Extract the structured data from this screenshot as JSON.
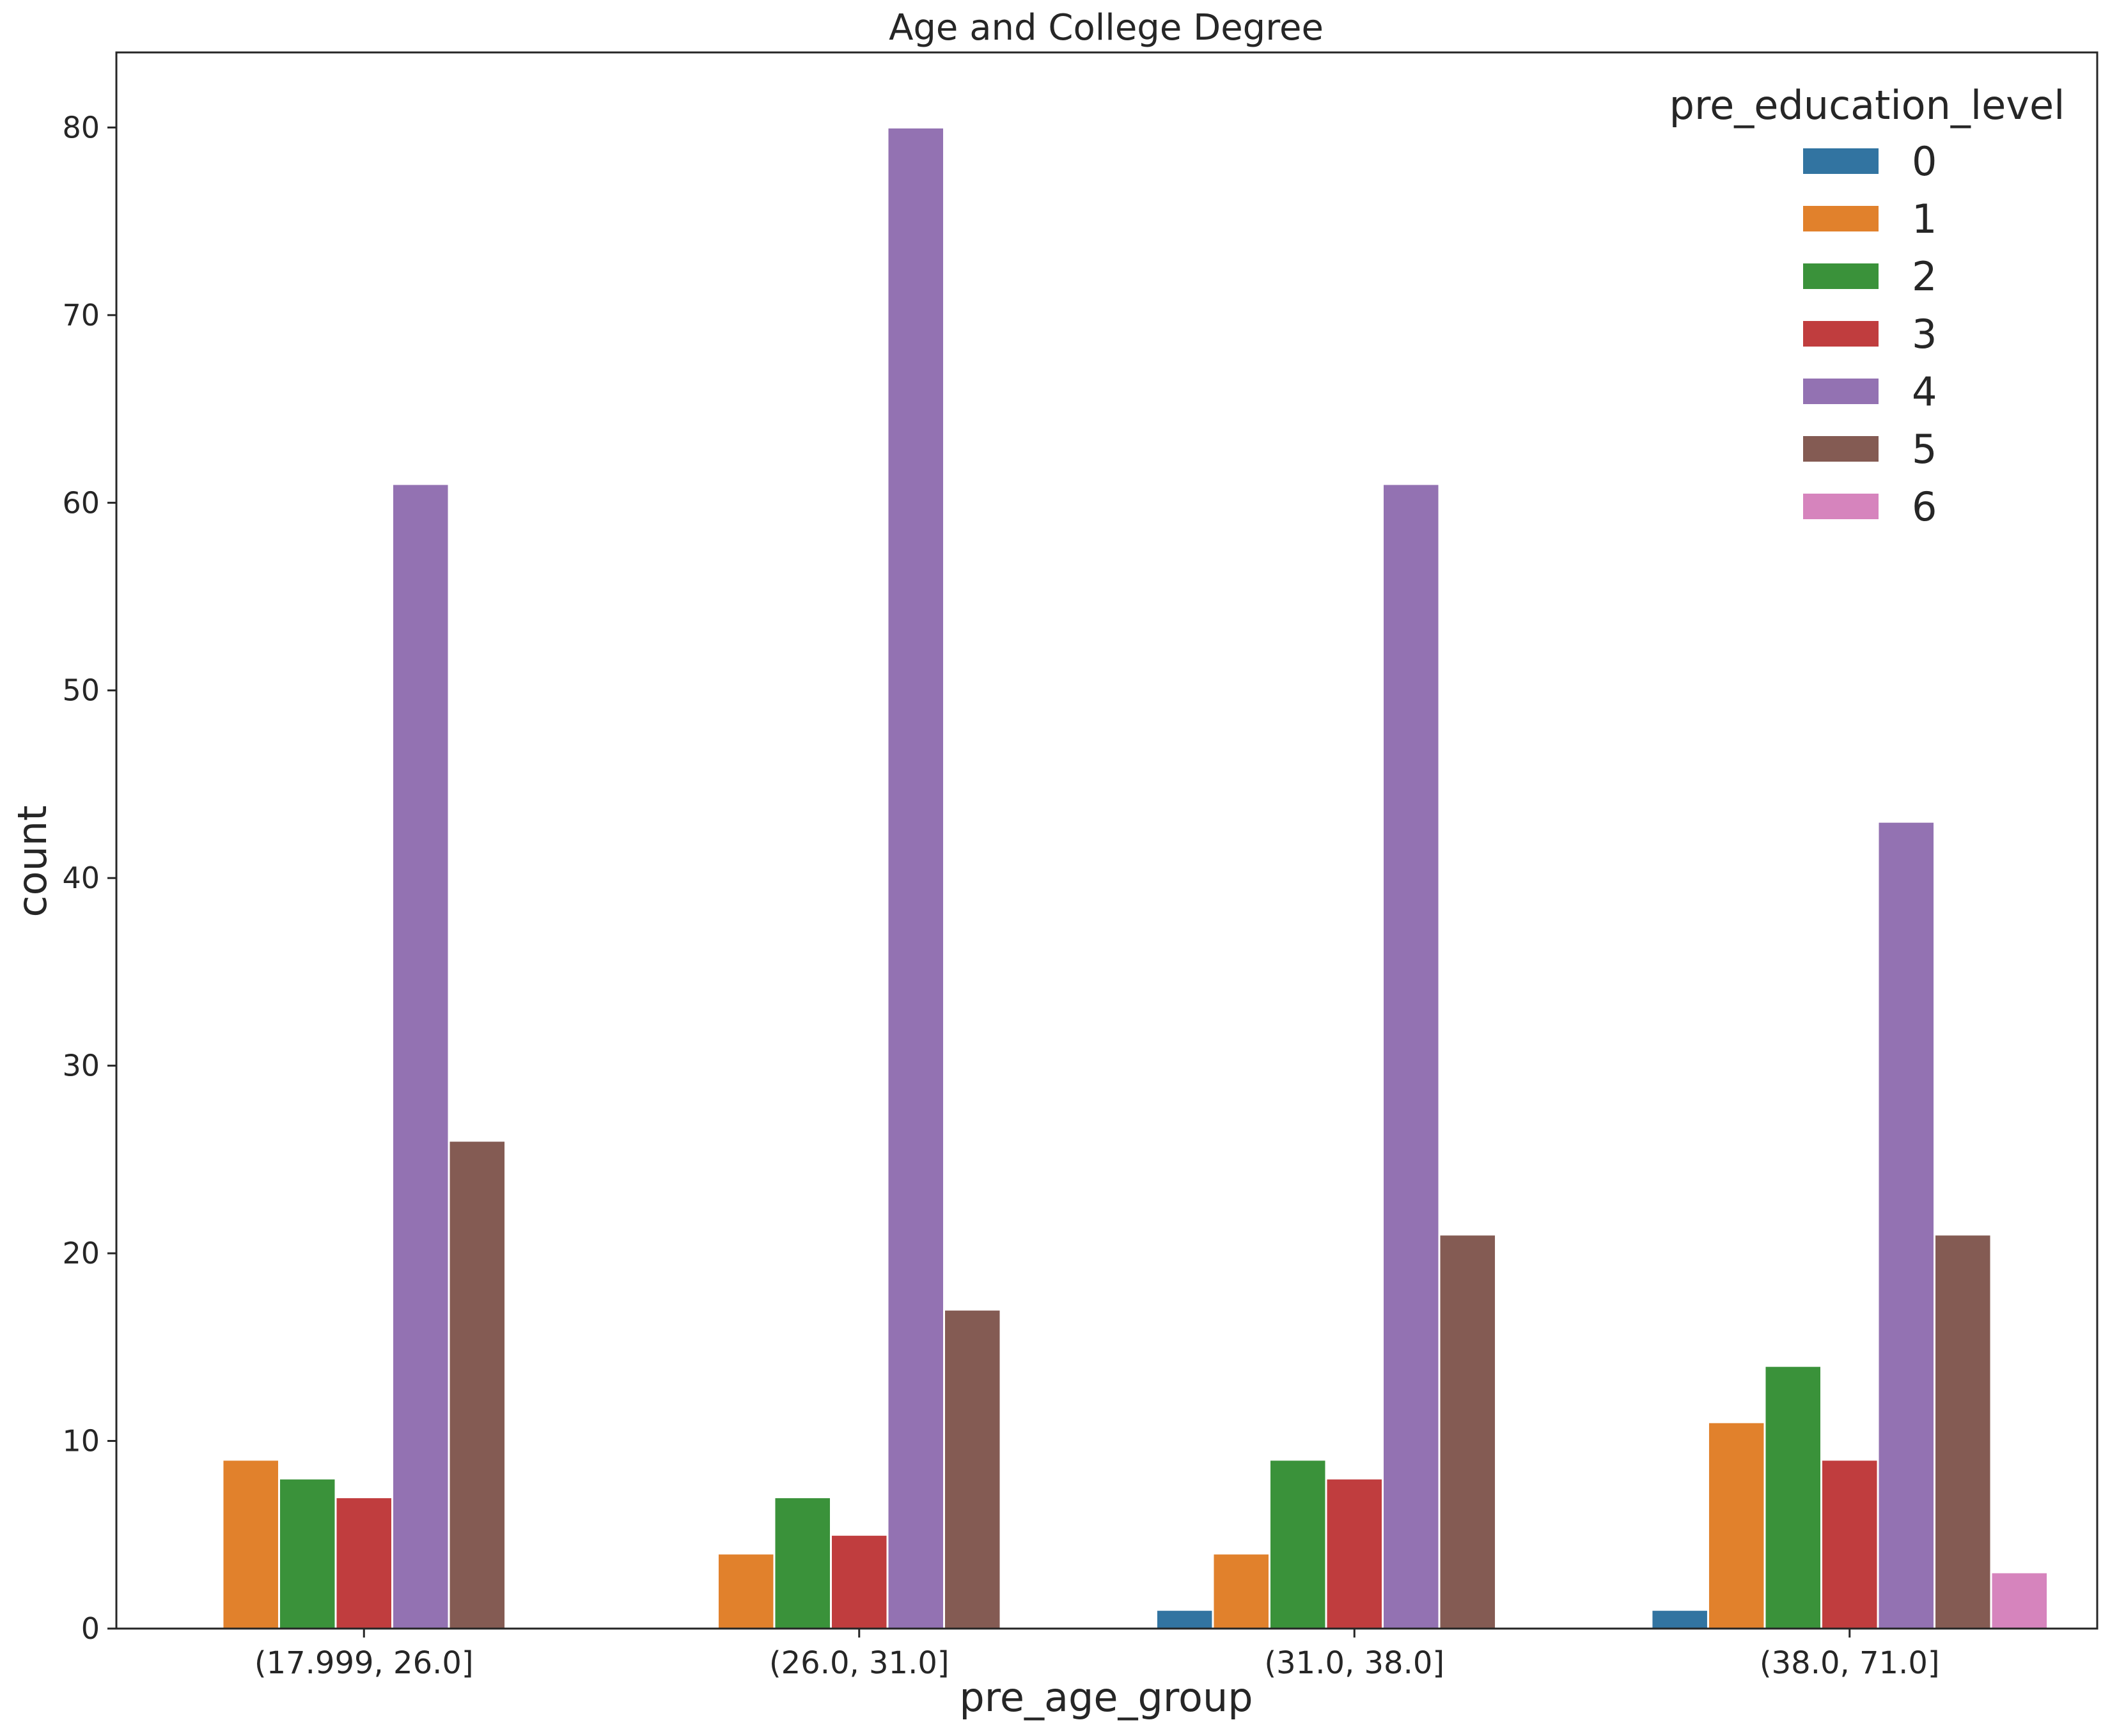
{
  "chart_data": {
    "type": "bar",
    "title": "Age and College Degree",
    "xlabel": "pre_age_group",
    "ylabel": "count",
    "categories": [
      "(17.999, 26.0]",
      "(26.0, 31.0]",
      "(31.0, 38.0]",
      "(38.0, 71.0]"
    ],
    "ylim": [
      0,
      84
    ],
    "yticks": [
      0,
      10,
      20,
      30,
      40,
      50,
      60,
      70,
      80
    ],
    "grid": false,
    "legend": {
      "title": "pre_education_level",
      "placement": "top-right"
    },
    "series": [
      {
        "name": "0",
        "color": "#3274a1",
        "values": [
          0,
          0,
          1,
          1
        ]
      },
      {
        "name": "1",
        "color": "#e1812c",
        "values": [
          9,
          4,
          4,
          11
        ]
      },
      {
        "name": "2",
        "color": "#3a923a",
        "values": [
          8,
          7,
          9,
          14
        ]
      },
      {
        "name": "3",
        "color": "#c03d3e",
        "values": [
          7,
          5,
          8,
          9
        ]
      },
      {
        "name": "4",
        "color": "#9372b2",
        "values": [
          61,
          80,
          61,
          43
        ]
      },
      {
        "name": "5",
        "color": "#845b53",
        "values": [
          26,
          17,
          21,
          21
        ]
      },
      {
        "name": "6",
        "color": "#d684bd",
        "values": [
          0,
          0,
          0,
          3
        ]
      }
    ]
  }
}
